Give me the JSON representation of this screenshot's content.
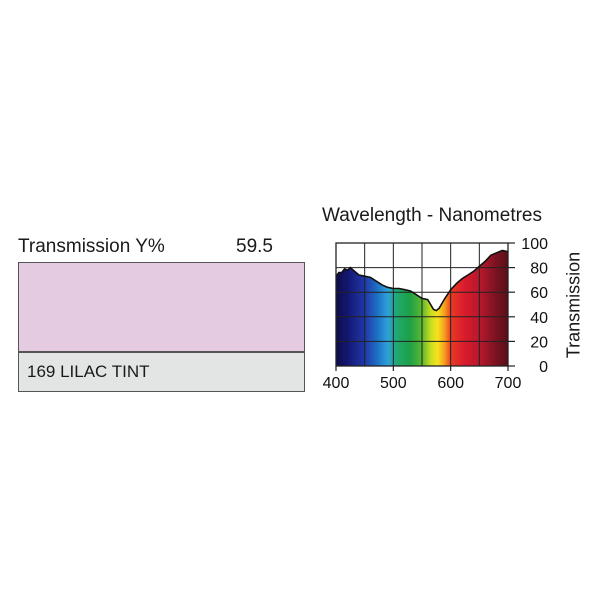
{
  "filter": {
    "transmission_label": "Transmission Y%",
    "transmission_value": "59.5",
    "name": "169 LILAC TINT",
    "swatch_color": "#e5cbe2"
  },
  "chart_data": {
    "type": "area",
    "title": "Wavelength - Nanometres",
    "xlabel": "",
    "ylabel": "Transmission",
    "xlim": [
      400,
      700
    ],
    "ylim": [
      0,
      100
    ],
    "x_ticks": [
      "400",
      "500",
      "600",
      "700"
    ],
    "y_ticks": [
      "0",
      "20",
      "40",
      "60",
      "80",
      "100"
    ],
    "grid": true,
    "fill": "visible spectrum colors",
    "x": [
      400,
      405,
      410,
      415,
      420,
      425,
      430,
      440,
      450,
      460,
      470,
      480,
      490,
      500,
      510,
      520,
      530,
      540,
      550,
      560,
      565,
      570,
      575,
      580,
      590,
      600,
      610,
      620,
      630,
      640,
      650,
      660,
      670,
      680,
      690,
      700
    ],
    "values": [
      73,
      76,
      76,
      79,
      78,
      80,
      78,
      74,
      73,
      72,
      69,
      66,
      64,
      63,
      63,
      62,
      61,
      58,
      55,
      54,
      50,
      46,
      45,
      47,
      55,
      62,
      67,
      71,
      74,
      77,
      81,
      85,
      90,
      92,
      94,
      93
    ]
  }
}
